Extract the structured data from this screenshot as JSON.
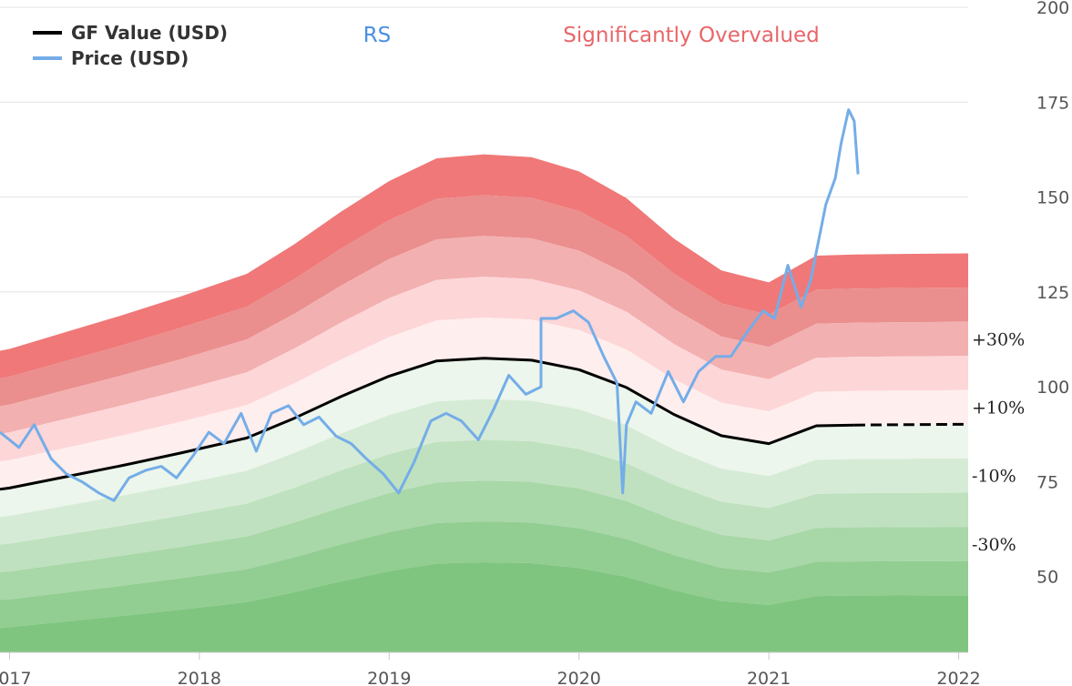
{
  "chart_data": {
    "type": "line",
    "ticker": "RS",
    "verdict": "Significantly Overvalued",
    "verdict_color": "#e8666a",
    "legend": [
      {
        "label": "GF Value (USD)",
        "color": "#000000"
      },
      {
        "label": "Price (USD)",
        "color": "#74ade8"
      }
    ],
    "x_ticks": [
      "2017",
      "2018",
      "2019",
      "2020",
      "2021",
      "2022"
    ],
    "x_range": [
      2016.95,
      2022.05
    ],
    "y_ticks": [
      50,
      75,
      100,
      125,
      150,
      175,
      200
    ],
    "ylim": [
      30,
      200
    ],
    "band_labels": [
      "+30%",
      "+10%",
      "-10%",
      "-30%"
    ],
    "band_multipliers": [
      0.5,
      0.6,
      0.7,
      0.8,
      0.9,
      1.0,
      1.1,
      1.2,
      1.3,
      1.4,
      1.5
    ],
    "band_colors": [
      "#7fc57f",
      "#92cd92",
      "#a8d7a8",
      "#bfe1bf",
      "#d6ebd6",
      "#ecf6ec",
      "#ffeeee",
      "#fdd6d8",
      "#f3b0b0",
      "#ea8e8e",
      "#f07878"
    ],
    "gf_value": {
      "x": [
        2016.95,
        2017.0,
        2017.3,
        2017.6,
        2017.9,
        2018.25,
        2018.5,
        2018.75,
        2019.0,
        2019.25,
        2019.5,
        2019.75,
        2020.0,
        2020.25,
        2020.5,
        2020.75,
        2021.0,
        2021.25,
        2021.45,
        2021.7,
        2022.05
      ],
      "y": [
        73,
        73.3,
        76.3,
        79.3,
        82.5,
        86.5,
        91.7,
        97.5,
        102.8,
        106.8,
        107.5,
        107,
        104.5,
        99.8,
        92.7,
        87.1,
        85,
        89.7,
        89.9,
        90,
        90.1
      ],
      "projected_from": 2021.45
    },
    "price": {
      "x": [
        2016.95,
        2017.05,
        2017.13,
        2017.22,
        2017.3,
        2017.38,
        2017.47,
        2017.55,
        2017.63,
        2017.72,
        2017.8,
        2017.88,
        2017.97,
        2018.05,
        2018.13,
        2018.22,
        2018.3,
        2018.38,
        2018.47,
        2018.55,
        2018.63,
        2018.72,
        2018.8,
        2018.88,
        2018.97,
        2019.05,
        2019.13,
        2019.22,
        2019.3,
        2019.38,
        2019.47,
        2019.55,
        2019.63,
        2019.72,
        2019.8,
        2019.8,
        2019.88,
        2019.97,
        2020.05,
        2020.13,
        2020.2,
        2020.23,
        2020.25,
        2020.3,
        2020.38,
        2020.47,
        2020.55,
        2020.63,
        2020.72,
        2020.8,
        2020.88,
        2020.97,
        2021.03,
        2021.1,
        2021.17,
        2021.22,
        2021.3,
        2021.35,
        2021.38,
        2021.42,
        2021.45,
        2021.47
      ],
      "y": [
        88,
        84,
        90,
        81,
        77,
        75,
        72,
        70,
        76,
        78,
        79,
        76,
        82,
        88,
        85,
        93,
        83,
        93,
        95,
        90,
        92,
        87,
        85,
        81,
        77,
        72,
        80,
        91,
        93,
        91,
        86,
        94,
        103,
        98,
        100,
        118,
        118,
        120,
        117,
        108,
        101,
        72,
        90,
        96,
        93,
        104,
        96,
        104,
        108,
        108,
        114,
        120,
        118,
        132,
        121,
        128,
        148,
        155,
        164,
        173,
        170,
        156
      ]
    }
  }
}
